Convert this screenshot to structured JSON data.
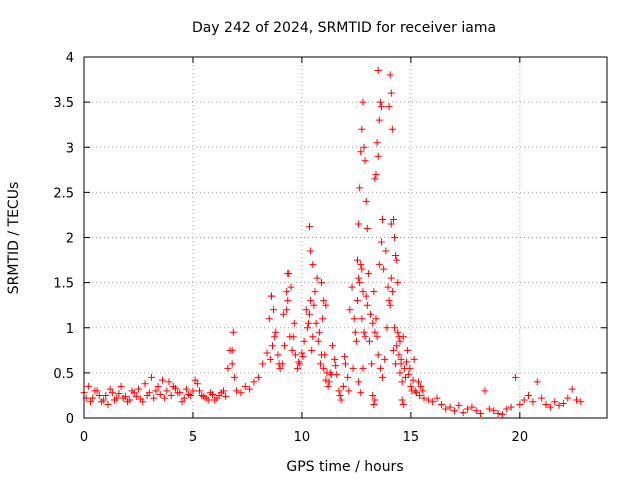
{
  "chart_data": {
    "type": "scatter",
    "title": "Day 242 of 2024, SRMTID for receiver iama",
    "xlabel": "GPS time / hours",
    "ylabel": "SRMTID / TECUs",
    "xlim": [
      0,
      24
    ],
    "ylim": [
      0,
      4
    ],
    "xticks": [
      0,
      5,
      10,
      15,
      20
    ],
    "xtick_labels": [
      "0",
      "5",
      "10",
      "15",
      "20"
    ],
    "yticks": [
      0,
      0.5,
      1,
      1.5,
      2,
      2.5,
      3,
      3.5,
      4
    ],
    "ytick_labels": [
      "0",
      "0.5",
      "1",
      "1.5",
      "2",
      "2.5",
      "3",
      "3.5",
      "4"
    ],
    "grid": true,
    "marker": "+",
    "marker_color": "#ff0000",
    "series": [
      {
        "name": "SRMTID",
        "x": [
          0.0,
          0.2,
          0.4,
          0.6,
          0.8,
          1.0,
          1.2,
          1.4,
          1.6,
          1.8,
          2.0,
          2.2,
          2.4,
          2.6,
          2.8,
          3.0,
          3.2,
          3.4,
          3.6,
          3.8,
          4.0,
          4.2,
          4.4,
          4.6,
          4.8,
          5.0,
          5.2,
          5.4,
          5.6,
          5.8,
          6.0,
          6.2,
          6.4,
          6.6,
          6.7,
          6.8,
          6.9,
          7.0,
          7.2,
          7.4,
          7.6,
          7.8,
          8.0,
          8.2,
          8.4,
          8.5,
          8.6,
          8.7,
          8.8,
          8.9,
          9.0,
          9.1,
          9.2,
          9.3,
          9.4,
          9.5,
          9.6,
          9.7,
          9.8,
          9.9,
          10.0,
          10.1,
          10.2,
          10.3,
          10.4,
          10.5,
          10.6,
          10.7,
          10.8,
          10.9,
          11.0,
          11.1,
          11.2,
          11.3,
          11.4,
          11.5,
          11.6,
          11.7,
          11.8,
          11.9,
          12.0,
          12.1,
          12.2,
          12.3,
          12.4,
          12.5,
          12.6,
          12.7,
          12.8,
          12.9,
          13.0,
          13.1,
          13.2,
          13.3,
          13.4,
          13.5,
          13.6,
          13.7,
          13.8,
          13.9,
          14.0,
          14.1,
          14.2,
          14.3,
          14.4,
          14.5,
          14.6,
          14.7,
          14.8,
          14.9,
          15.0,
          15.1,
          15.2,
          15.4,
          15.6,
          15.8,
          16.0,
          16.2,
          16.4,
          16.6,
          16.8,
          17.0,
          17.2,
          17.4,
          17.6,
          17.8,
          18.0,
          18.2,
          18.4,
          18.6,
          18.8,
          19.0,
          19.2,
          19.4,
          19.6,
          19.8,
          20.0,
          20.2,
          20.4,
          20.6,
          20.8,
          21.0,
          21.2,
          21.4,
          21.6,
          21.8,
          22.0,
          22.2,
          22.4,
          22.6,
          22.8,
          0.1,
          0.3,
          0.5,
          0.7,
          0.9,
          1.1,
          1.3,
          1.5,
          1.7,
          1.9,
          2.1,
          2.3,
          2.5,
          2.7,
          2.9,
          3.1,
          3.3,
          3.5,
          3.7,
          3.9,
          4.1,
          4.3,
          4.5,
          4.7,
          4.9,
          5.1,
          5.3,
          5.5,
          5.7,
          5.9,
          6.1,
          6.3,
          6.5,
          8.55,
          8.75,
          8.95,
          9.15,
          9.35,
          9.45,
          9.55,
          9.65,
          9.85,
          10.05,
          10.25,
          10.35,
          10.45,
          10.55,
          10.65,
          10.75,
          10.85,
          10.95,
          11.05,
          11.15,
          11.25,
          11.35,
          11.55,
          11.75,
          11.95,
          12.15,
          12.35,
          12.45,
          12.55,
          12.65,
          12.75,
          12.85,
          12.95,
          13.05,
          13.15,
          13.25,
          13.35,
          13.45,
          13.55,
          13.65,
          13.75,
          13.85,
          13.95,
          14.05,
          14.15,
          14.25,
          14.35,
          14.45,
          14.55,
          14.65,
          14.75,
          14.85,
          14.95,
          15.05,
          15.15,
          15.25,
          15.35,
          15.45,
          15.55,
          13.5,
          13.6,
          13.55,
          13.65,
          13.4,
          13.35,
          13.7,
          13.45,
          13.5,
          14.05,
          14.1,
          14.0,
          14.15,
          14.2,
          14.1,
          14.25,
          14.3,
          14.35,
          14.4,
          12.6,
          12.65,
          12.7,
          12.75,
          12.8,
          12.85,
          12.9,
          12.7,
          12.75,
          12.8,
          12.95,
          13.0,
          10.35,
          10.4,
          10.5,
          10.9,
          11.0,
          11.1,
          9.3,
          9.35,
          8.6,
          8.65,
          6.8,
          6.85,
          12.55,
          12.6,
          13.3,
          13.35,
          13.25,
          14.45,
          14.5,
          14.55,
          14.6,
          14.65
        ],
        "y": [
          0.28,
          0.35,
          0.22,
          0.3,
          0.18,
          0.25,
          0.32,
          0.2,
          0.27,
          0.22,
          0.18,
          0.3,
          0.24,
          0.21,
          0.38,
          0.28,
          0.22,
          0.35,
          0.42,
          0.3,
          0.25,
          0.33,
          0.28,
          0.22,
          0.26,
          0.3,
          0.38,
          0.25,
          0.22,
          0.28,
          0.2,
          0.25,
          0.3,
          0.55,
          0.75,
          0.6,
          0.45,
          0.3,
          0.28,
          0.35,
          0.32,
          0.4,
          0.45,
          0.6,
          0.72,
          1.1,
          1.35,
          1.2,
          0.95,
          0.7,
          0.55,
          0.6,
          0.8,
          1.2,
          1.6,
          1.45,
          0.9,
          0.7,
          0.55,
          0.6,
          0.72,
          0.85,
          1.2,
          1.05,
          1.3,
          0.9,
          1.4,
          1.55,
          0.95,
          0.7,
          0.55,
          0.42,
          0.35,
          0.5,
          0.8,
          0.65,
          0.48,
          0.3,
          0.2,
          0.35,
          0.6,
          0.45,
          1.2,
          1.45,
          1.1,
          0.85,
          0.4,
          0.28,
          0.55,
          0.9,
          1.25,
          0.85,
          0.6,
          1.4,
          1.1,
          0.7,
          0.55,
          0.45,
          0.65,
          1.0,
          1.3,
          1.55,
          0.75,
          0.6,
          0.95,
          0.5,
          0.4,
          0.55,
          0.62,
          0.48,
          0.35,
          0.42,
          0.3,
          0.25,
          0.22,
          0.2,
          0.18,
          0.22,
          0.15,
          0.1,
          0.12,
          0.08,
          0.14,
          0.06,
          0.1,
          0.12,
          0.08,
          0.05,
          0.3,
          0.1,
          0.08,
          0.05,
          0.04,
          0.1,
          0.12,
          0.45,
          0.15,
          0.2,
          0.25,
          0.18,
          0.4,
          0.22,
          0.15,
          0.12,
          0.18,
          0.14,
          0.16,
          0.22,
          0.32,
          0.2,
          0.18,
          0.22,
          0.18,
          0.3,
          0.25,
          0.2,
          0.15,
          0.28,
          0.22,
          0.35,
          0.24,
          0.2,
          0.28,
          0.32,
          0.18,
          0.25,
          0.45,
          0.3,
          0.26,
          0.22,
          0.4,
          0.35,
          0.28,
          0.18,
          0.32,
          0.25,
          0.42,
          0.3,
          0.24,
          0.2,
          0.26,
          0.22,
          0.28,
          0.24,
          0.65,
          0.9,
          0.6,
          1.15,
          1.3,
          0.9,
          0.75,
          1.05,
          0.62,
          0.68,
          1.0,
          1.15,
          0.75,
          1.25,
          1.05,
          0.85,
          0.6,
          1.1,
          0.7,
          0.5,
          0.4,
          0.48,
          0.58,
          0.25,
          0.68,
          0.3,
          0.55,
          0.95,
          1.3,
          1.5,
          1.1,
          0.95,
          1.35,
          1.6,
          1.15,
          1.05,
          0.95,
          0.9,
          1.7,
          1.95,
          1.65,
          1.85,
          1.45,
          1.25,
          1.4,
          1.0,
          0.8,
          0.7,
          0.6,
          0.9,
          0.45,
          0.75,
          0.55,
          0.3,
          0.65,
          0.28,
          0.4,
          0.35,
          0.3,
          3.85,
          3.5,
          3.3,
          3.45,
          2.7,
          2.65,
          2.2,
          3.05,
          2.9,
          3.8,
          3.6,
          3.45,
          3.2,
          2.2,
          2.15,
          2.0,
          1.8,
          1.75,
          1.5,
          2.15,
          2.55,
          2.95,
          3.2,
          3.5,
          3.0,
          2.85,
          1.7,
          1.65,
          1.4,
          2.4,
          2.1,
          2.12,
          1.85,
          1.7,
          1.5,
          1.3,
          1.25,
          1.4,
          1.6,
          1.35,
          0.8,
          0.75,
          0.95,
          1.75,
          1.55,
          0.15,
          0.2,
          0.25,
          0.9,
          0.85,
          0.65,
          0.2,
          0.15
        ]
      }
    ]
  }
}
